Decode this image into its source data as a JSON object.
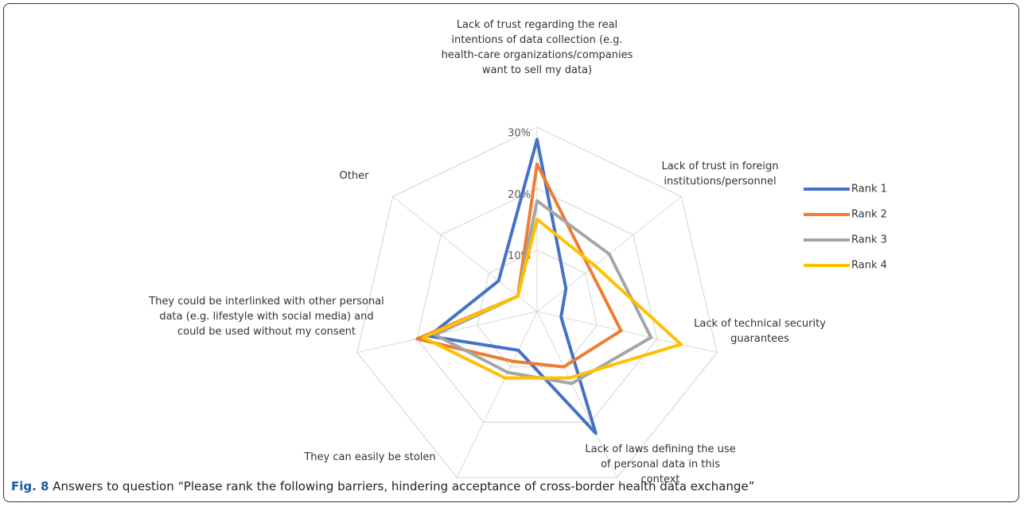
{
  "chart_data": {
    "type": "radar",
    "categories": [
      "Lack of trust regarding the real intentions of data collection (e.g. health-care organizations/companies want to sell my data)",
      "Lack of trust in foreign institutions/personnel",
      "Lack of technical security guarantees",
      "Lack of laws defining the use of personal data in this context",
      "They can easily be stolen",
      "They could be interlinked with other personal data (e.g. lifestyle with social media) and could be used without my consent",
      "Other"
    ],
    "series": [
      {
        "name": "Rank 1",
        "color": "#4472c4",
        "values": [
          28,
          6,
          4,
          22,
          7,
          18,
          8
        ]
      },
      {
        "name": "Rank 2",
        "color": "#ed7d31",
        "values": [
          24,
          11,
          14,
          10,
          9,
          20,
          4
        ]
      },
      {
        "name": "Rank 3",
        "color": "#a5a5a5",
        "values": [
          18,
          15,
          19,
          13,
          11,
          17,
          4
        ]
      },
      {
        "name": "Rank 4",
        "color": "#ffc000",
        "values": [
          15,
          12,
          24,
          12,
          12,
          19,
          4
        ]
      }
    ],
    "ylim": [
      0,
      30
    ],
    "yticks": [
      {
        "value": 10,
        "label": "10%"
      },
      {
        "value": 20,
        "label": "20%"
      },
      {
        "value": 30,
        "label": "30%"
      }
    ],
    "grid": true,
    "legend": "right"
  },
  "figure_label": "Fig. 8",
  "caption": "Answers to question “Please rank the following barriers, hindering acceptance of cross-border health data exchange”"
}
